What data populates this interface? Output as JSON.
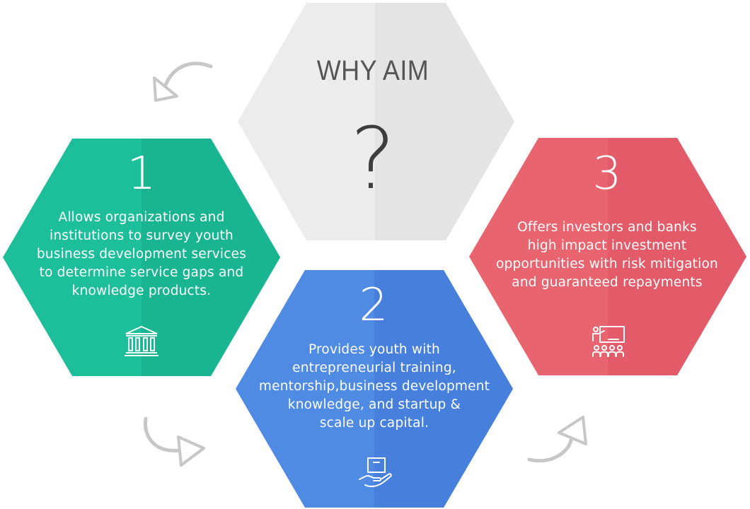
{
  "header": {
    "title": "WHY AIM",
    "question_mark": "?"
  },
  "cards": [
    {
      "number": "1",
      "lines": [
        "Allows organizations and",
        "institutions to survey youth",
        "business development services",
        "to determine service gaps and",
        "knowledge products."
      ],
      "icon": "institution-building-icon",
      "color": "#1dbf9a"
    },
    {
      "number": "2",
      "lines": [
        "Provides youth with",
        "entrepreneurial training,",
        "mentorship,business development",
        "knowledge, and startup &",
        "scale up capital."
      ],
      "icon": "hand-holding-box-icon",
      "color": "#4a84df"
    },
    {
      "number": "3",
      "lines": [
        "Offers investors and banks",
        "high impact investment",
        "opportunities with risk mitigation",
        "and guaranteed repayments"
      ],
      "icon": "presentation-audience-icon",
      "color": "#e8606d"
    }
  ],
  "center_hex_color": "#ececec",
  "arrows": [
    "curved-arrow-icon",
    "curved-arrow-icon",
    "curved-arrow-icon"
  ]
}
